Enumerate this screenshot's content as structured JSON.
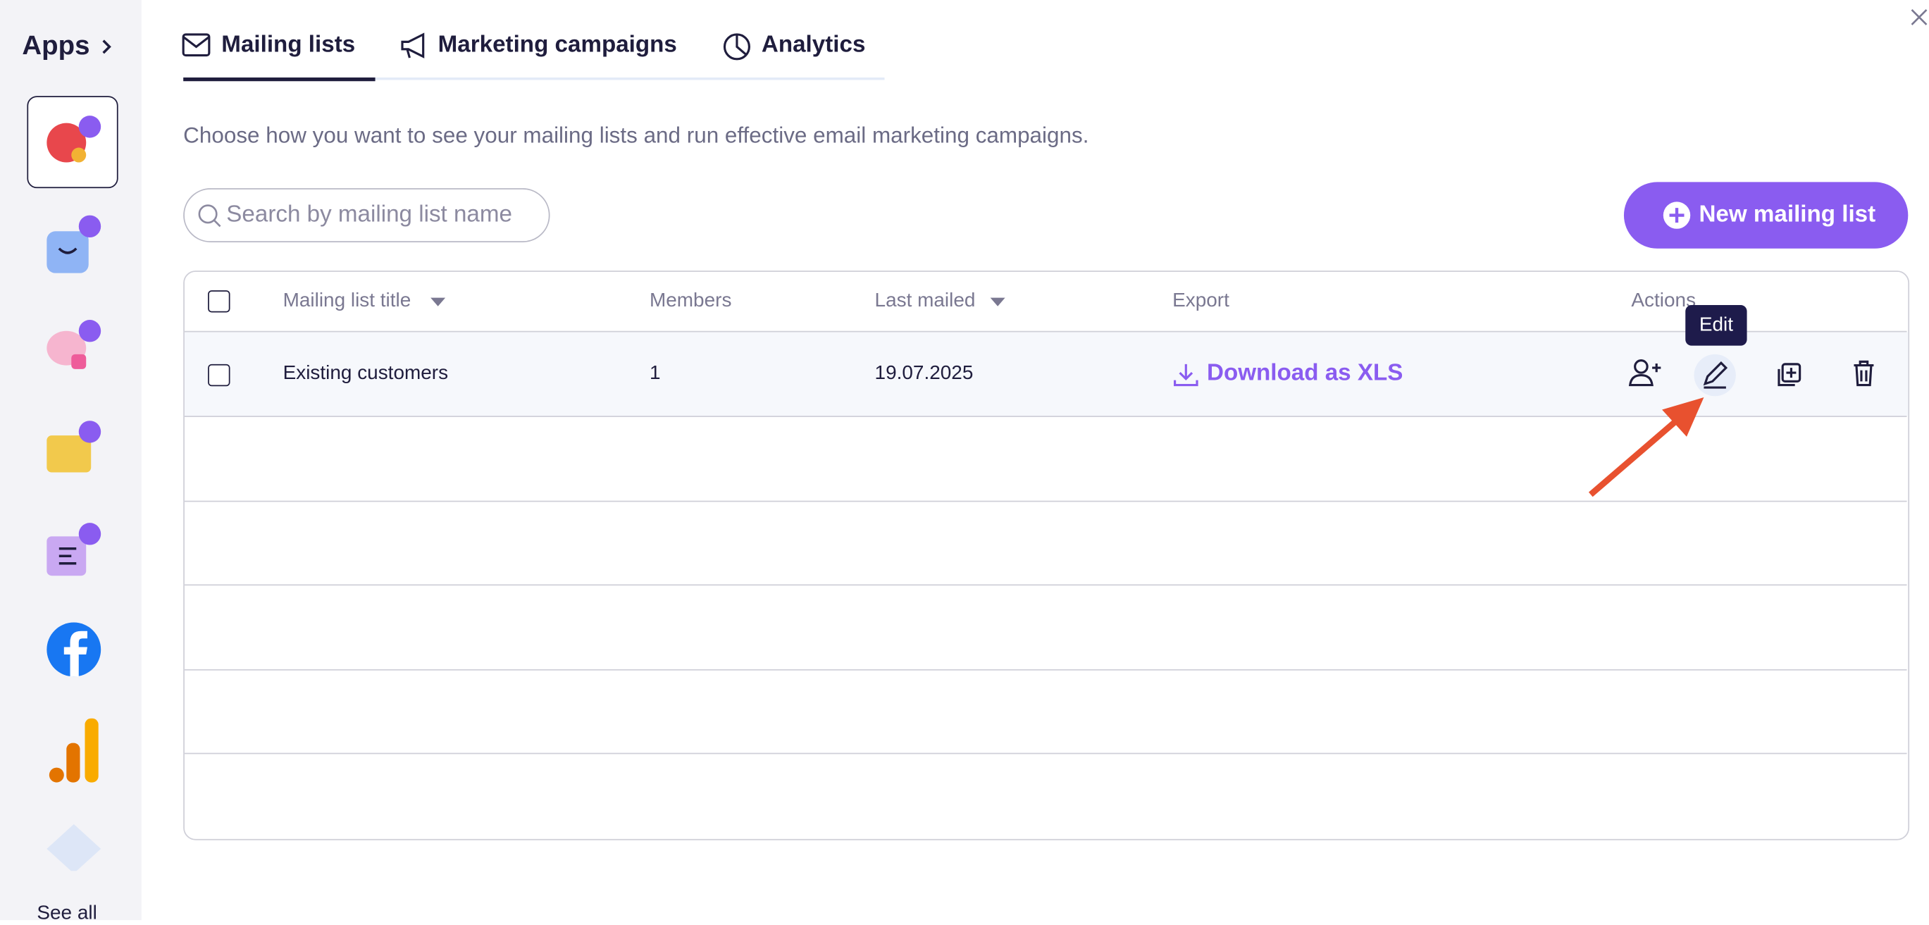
{
  "sidebar": {
    "title": "Apps",
    "see_all": "See all"
  },
  "tabs": [
    "Mailing lists",
    "Marketing campaigns",
    "Analytics"
  ],
  "description": "Choose how you want to see your mailing lists and run effective email marketing campaigns.",
  "search": {
    "placeholder": "Search by mailing list name"
  },
  "new_button": "New mailing list",
  "table": {
    "headers": [
      "Mailing list title",
      "Members",
      "Last mailed",
      "Export",
      "Actions"
    ],
    "rows": [
      [
        "Existing customers",
        "1",
        "19.07.2025",
        "Download as XLS"
      ]
    ]
  },
  "tooltip": "Edit"
}
